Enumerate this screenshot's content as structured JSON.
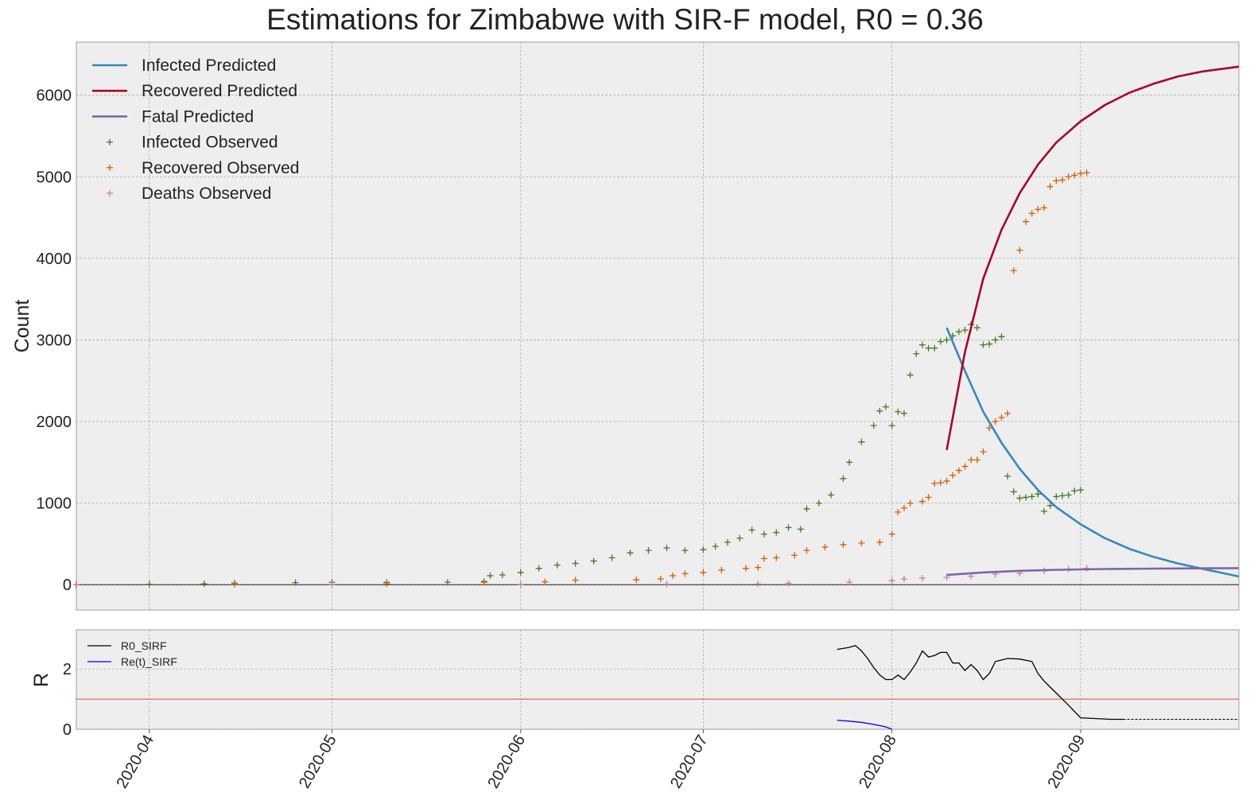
{
  "title": "Estimations for Zimbabwe with SIR-F model, R0 = 0.36",
  "colors": {
    "background": "#eeeeee",
    "grid": "#b0b0b0",
    "infected_predicted": "#348abd",
    "recovered_predicted": "#a60628",
    "fatal_predicted": "#7a68a6",
    "infected_observed": "#467821",
    "recovered_observed": "#d55e00",
    "deaths_observed": "#cc79a7",
    "r0_line": "#000000",
    "rt_line": "#0000ff",
    "threshold": "#e24a33"
  },
  "chart_data": [
    {
      "type": "line",
      "x_type": "date",
      "xlim": [
        "2020-03-20",
        "2020-09-27"
      ],
      "ylim": [
        -310,
        6650
      ],
      "xlabel": "",
      "ylabel": "Count",
      "grid": true,
      "legend_placement": "top-left",
      "x_ticks": [
        "2020-04",
        "2020-05",
        "2020-06",
        "2020-07",
        "2020-08",
        "2020-09"
      ],
      "y_ticks": [
        0,
        1000,
        2000,
        3000,
        4000,
        5000,
        6000
      ],
      "hline": 0,
      "series": [
        {
          "name": "Infected Predicted",
          "style": "line",
          "color_key": "infected_predicted",
          "points": [
            [
              "2020-08-10",
              3150
            ],
            [
              "2020-08-13",
              2620
            ],
            [
              "2020-08-16",
              2120
            ],
            [
              "2020-08-19",
              1740
            ],
            [
              "2020-08-22",
              1420
            ],
            [
              "2020-08-25",
              1160
            ],
            [
              "2020-08-28",
              950
            ],
            [
              "2020-09-01",
              740
            ],
            [
              "2020-09-05",
              570
            ],
            [
              "2020-09-09",
              440
            ],
            [
              "2020-09-13",
              340
            ],
            [
              "2020-09-17",
              260
            ],
            [
              "2020-09-21",
              195
            ],
            [
              "2020-09-27",
              100
            ]
          ]
        },
        {
          "name": "Recovered Predicted",
          "style": "line",
          "color_key": "recovered_predicted",
          "points": [
            [
              "2020-08-10",
              1650
            ],
            [
              "2020-08-13",
              2850
            ],
            [
              "2020-08-16",
              3750
            ],
            [
              "2020-08-19",
              4350
            ],
            [
              "2020-08-22",
              4800
            ],
            [
              "2020-08-25",
              5150
            ],
            [
              "2020-08-28",
              5420
            ],
            [
              "2020-09-01",
              5680
            ],
            [
              "2020-09-05",
              5880
            ],
            [
              "2020-09-09",
              6030
            ],
            [
              "2020-09-13",
              6140
            ],
            [
              "2020-09-17",
              6230
            ],
            [
              "2020-09-21",
              6290
            ],
            [
              "2020-09-27",
              6350
            ]
          ]
        },
        {
          "name": "Fatal Predicted",
          "style": "line",
          "color_key": "fatal_predicted",
          "points": [
            [
              "2020-08-10",
              120
            ],
            [
              "2020-08-16",
              150
            ],
            [
              "2020-08-22",
              170
            ],
            [
              "2020-08-28",
              182
            ],
            [
              "2020-09-05",
              192
            ],
            [
              "2020-09-13",
              197
            ],
            [
              "2020-09-20",
              200
            ],
            [
              "2020-09-27",
              203
            ]
          ]
        },
        {
          "name": "Infected Observed",
          "style": "marker",
          "color_key": "infected_observed",
          "points": [
            [
              "2020-03-20",
              1
            ],
            [
              "2020-04-01",
              5
            ],
            [
              "2020-04-10",
              10
            ],
            [
              "2020-04-15",
              20
            ],
            [
              "2020-04-25",
              25
            ],
            [
              "2020-05-01",
              30
            ],
            [
              "2020-05-10",
              28
            ],
            [
              "2020-05-20",
              30
            ],
            [
              "2020-05-26",
              40
            ],
            [
              "2020-05-27",
              110
            ],
            [
              "2020-05-29",
              120
            ],
            [
              "2020-06-01",
              150
            ],
            [
              "2020-06-04",
              200
            ],
            [
              "2020-06-07",
              240
            ],
            [
              "2020-06-10",
              260
            ],
            [
              "2020-06-13",
              290
            ],
            [
              "2020-06-16",
              330
            ],
            [
              "2020-06-19",
              390
            ],
            [
              "2020-06-22",
              420
            ],
            [
              "2020-06-25",
              450
            ],
            [
              "2020-06-28",
              420
            ],
            [
              "2020-07-01",
              430
            ],
            [
              "2020-07-03",
              470
            ],
            [
              "2020-07-05",
              520
            ],
            [
              "2020-07-07",
              570
            ],
            [
              "2020-07-09",
              670
            ],
            [
              "2020-07-11",
              620
            ],
            [
              "2020-07-13",
              640
            ],
            [
              "2020-07-15",
              700
            ],
            [
              "2020-07-17",
              680
            ],
            [
              "2020-07-18",
              930
            ],
            [
              "2020-07-20",
              1000
            ],
            [
              "2020-07-22",
              1100
            ],
            [
              "2020-07-24",
              1300
            ],
            [
              "2020-07-25",
              1500
            ],
            [
              "2020-07-27",
              1750
            ],
            [
              "2020-07-29",
              1950
            ],
            [
              "2020-07-30",
              2130
            ],
            [
              "2020-07-31",
              2180
            ],
            [
              "2020-08-01",
              1950
            ],
            [
              "2020-08-02",
              2120
            ],
            [
              "2020-08-03",
              2100
            ],
            [
              "2020-08-04",
              2570
            ],
            [
              "2020-08-05",
              2830
            ],
            [
              "2020-08-06",
              2940
            ],
            [
              "2020-08-07",
              2900
            ],
            [
              "2020-08-08",
              2900
            ],
            [
              "2020-08-09",
              2980
            ],
            [
              "2020-08-10",
              3000
            ],
            [
              "2020-08-11",
              3050
            ],
            [
              "2020-08-12",
              3100
            ],
            [
              "2020-08-13",
              3120
            ],
            [
              "2020-08-14",
              3190
            ],
            [
              "2020-08-15",
              3150
            ],
            [
              "2020-08-16",
              2940
            ],
            [
              "2020-08-17",
              2950
            ],
            [
              "2020-08-18",
              3000
            ],
            [
              "2020-08-19",
              3040
            ],
            [
              "2020-08-20",
              1330
            ],
            [
              "2020-08-21",
              1140
            ],
            [
              "2020-08-22",
              1060
            ],
            [
              "2020-08-23",
              1070
            ],
            [
              "2020-08-24",
              1080
            ],
            [
              "2020-08-25",
              1110
            ],
            [
              "2020-08-26",
              900
            ],
            [
              "2020-08-27",
              970
            ],
            [
              "2020-08-28",
              1080
            ],
            [
              "2020-08-29",
              1090
            ],
            [
              "2020-08-30",
              1100
            ],
            [
              "2020-08-31",
              1150
            ],
            [
              "2020-09-01",
              1160
            ]
          ]
        },
        {
          "name": "Recovered Observed",
          "style": "marker",
          "color_key": "recovered_observed",
          "points": [
            [
              "2020-03-20",
              0
            ],
            [
              "2020-04-15",
              5
            ],
            [
              "2020-05-10",
              10
            ],
            [
              "2020-05-26",
              30
            ],
            [
              "2020-06-05",
              35
            ],
            [
              "2020-06-10",
              55
            ],
            [
              "2020-06-20",
              60
            ],
            [
              "2020-06-24",
              70
            ],
            [
              "2020-06-26",
              110
            ],
            [
              "2020-06-28",
              135
            ],
            [
              "2020-07-01",
              150
            ],
            [
              "2020-07-04",
              180
            ],
            [
              "2020-07-08",
              200
            ],
            [
              "2020-07-10",
              210
            ],
            [
              "2020-07-11",
              320
            ],
            [
              "2020-07-13",
              330
            ],
            [
              "2020-07-16",
              360
            ],
            [
              "2020-07-18",
              420
            ],
            [
              "2020-07-21",
              460
            ],
            [
              "2020-07-24",
              490
            ],
            [
              "2020-07-27",
              510
            ],
            [
              "2020-07-30",
              520
            ],
            [
              "2020-08-01",
              620
            ],
            [
              "2020-08-02",
              890
            ],
            [
              "2020-08-03",
              940
            ],
            [
              "2020-08-04",
              1000
            ],
            [
              "2020-08-06",
              1020
            ],
            [
              "2020-08-07",
              1070
            ],
            [
              "2020-08-08",
              1240
            ],
            [
              "2020-08-09",
              1250
            ],
            [
              "2020-08-10",
              1270
            ],
            [
              "2020-08-11",
              1340
            ],
            [
              "2020-08-12",
              1400
            ],
            [
              "2020-08-13",
              1450
            ],
            [
              "2020-08-14",
              1530
            ],
            [
              "2020-08-15",
              1530
            ],
            [
              "2020-08-16",
              1630
            ],
            [
              "2020-08-17",
              1920
            ],
            [
              "2020-08-18",
              2000
            ],
            [
              "2020-08-19",
              2050
            ],
            [
              "2020-08-20",
              2100
            ],
            [
              "2020-08-21",
              3850
            ],
            [
              "2020-08-22",
              4100
            ],
            [
              "2020-08-23",
              4450
            ],
            [
              "2020-08-24",
              4550
            ],
            [
              "2020-08-25",
              4600
            ],
            [
              "2020-08-26",
              4620
            ],
            [
              "2020-08-27",
              4880
            ],
            [
              "2020-08-28",
              4950
            ],
            [
              "2020-08-29",
              4960
            ],
            [
              "2020-08-30",
              5000
            ],
            [
              "2020-08-31",
              5020
            ],
            [
              "2020-09-01",
              5040
            ],
            [
              "2020-09-02",
              5050
            ]
          ]
        },
        {
          "name": "Deaths Observed",
          "style": "marker",
          "color_key": "deaths_observed",
          "points": [
            [
              "2020-03-20",
              1
            ],
            [
              "2020-05-01",
              4
            ],
            [
              "2020-06-01",
              4
            ],
            [
              "2020-06-25",
              6
            ],
            [
              "2020-07-10",
              9
            ],
            [
              "2020-07-15",
              18
            ],
            [
              "2020-07-25",
              30
            ],
            [
              "2020-08-01",
              50
            ],
            [
              "2020-08-03",
              70
            ],
            [
              "2020-08-06",
              80
            ],
            [
              "2020-08-10",
              90
            ],
            [
              "2020-08-14",
              104
            ],
            [
              "2020-08-18",
              130
            ],
            [
              "2020-08-22",
              140
            ],
            [
              "2020-08-26",
              170
            ],
            [
              "2020-08-30",
              190
            ],
            [
              "2020-09-02",
              200
            ]
          ]
        }
      ]
    },
    {
      "type": "line",
      "x_type": "date",
      "xlim": [
        "2020-03-20",
        "2020-09-27"
      ],
      "ylim": [
        0,
        3.3
      ],
      "xlabel": "",
      "ylabel": "R",
      "grid": true,
      "legend_placement": "top-left",
      "x_ticks": [
        "2020-04",
        "2020-05",
        "2020-06",
        "2020-07",
        "2020-08",
        "2020-09"
      ],
      "y_ticks": [
        0,
        2
      ],
      "hline": 1,
      "series": [
        {
          "name": "R0_SIRF",
          "color_key": "r0_line",
          "points": [
            [
              "2020-07-23",
              2.65
            ],
            [
              "2020-07-25",
              2.72
            ],
            [
              "2020-07-26",
              2.78
            ],
            [
              "2020-07-27",
              2.6
            ],
            [
              "2020-07-28",
              2.35
            ],
            [
              "2020-07-29",
              2.05
            ],
            [
              "2020-07-30",
              1.8
            ],
            [
              "2020-07-31",
              1.65
            ],
            [
              "2020-08-01",
              1.65
            ],
            [
              "2020-08-02",
              1.8
            ],
            [
              "2020-08-03",
              1.65
            ],
            [
              "2020-08-04",
              1.9
            ],
            [
              "2020-08-05",
              2.2
            ],
            [
              "2020-08-06",
              2.6
            ],
            [
              "2020-08-07",
              2.4
            ],
            [
              "2020-08-08",
              2.45
            ],
            [
              "2020-08-09",
              2.55
            ],
            [
              "2020-08-10",
              2.55
            ],
            [
              "2020-08-11",
              2.2
            ],
            [
              "2020-08-12",
              2.2
            ],
            [
              "2020-08-13",
              1.95
            ],
            [
              "2020-08-14",
              2.15
            ],
            [
              "2020-08-15",
              1.95
            ],
            [
              "2020-08-16",
              1.65
            ],
            [
              "2020-08-17",
              1.85
            ],
            [
              "2020-08-18",
              2.25
            ],
            [
              "2020-08-19",
              2.3
            ],
            [
              "2020-08-20",
              2.35
            ],
            [
              "2020-08-22",
              2.33
            ],
            [
              "2020-08-24",
              2.25
            ],
            [
              "2020-08-25",
              1.85
            ],
            [
              "2020-08-26",
              1.6
            ],
            [
              "2020-08-27",
              1.4
            ],
            [
              "2020-08-28",
              1.2
            ],
            [
              "2020-08-30",
              0.8
            ],
            [
              "2020-09-01",
              0.38
            ],
            [
              "2020-09-03",
              0.36
            ],
            [
              "2020-09-06",
              0.33
            ],
            [
              "2020-09-08",
              0.33
            ]
          ],
          "dashed_extension": [
            [
              "2020-09-08",
              0.33
            ],
            [
              "2020-09-27",
              0.33
            ]
          ]
        },
        {
          "name": "Re(t)_SIRF",
          "color_key": "rt_line",
          "points": [
            [
              "2020-07-23",
              0.3
            ],
            [
              "2020-07-25",
              0.27
            ],
            [
              "2020-07-27",
              0.23
            ],
            [
              "2020-07-29",
              0.16
            ],
            [
              "2020-07-31",
              0.08
            ],
            [
              "2020-08-01",
              0.0
            ]
          ]
        }
      ]
    }
  ]
}
